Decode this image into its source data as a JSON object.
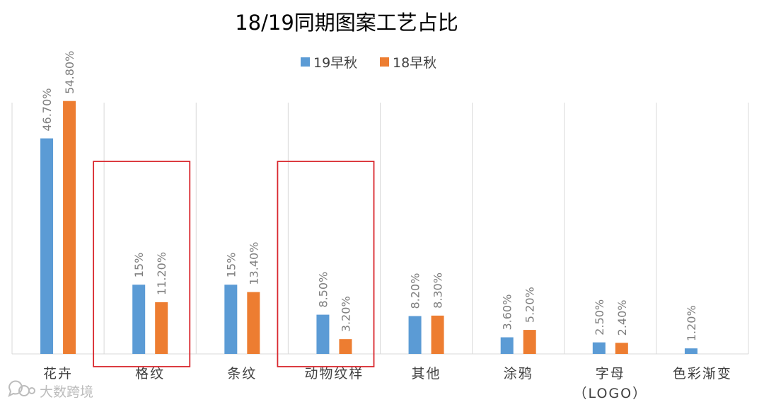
{
  "chart_data": {
    "type": "bar",
    "title": "18/19同期图案工艺占比",
    "categories": [
      "花卉",
      "格纹",
      "条纹",
      "动物纹样",
      "其他",
      "涂鸦",
      "字母",
      "色彩渐变"
    ],
    "category_sublabels": [
      "",
      "",
      "",
      "",
      "",
      "",
      "（LOGO）",
      ""
    ],
    "series": [
      {
        "name": "19早秋",
        "color": "#5b9bd5",
        "values": [
          46.7,
          15,
          15,
          8.5,
          8.2,
          3.6,
          2.5,
          1.2
        ],
        "labels": [
          "46.70%",
          "15%",
          "15%",
          "8.50%",
          "8.20%",
          "3.60%",
          "2.50%",
          "1.20%"
        ]
      },
      {
        "name": "18早秋",
        "color": "#ed7d31",
        "values": [
          54.8,
          11.2,
          13.4,
          3.2,
          8.3,
          5.2,
          2.4,
          null
        ],
        "labels": [
          "54.80%",
          "11.20%",
          "13.40%",
          "3.20%",
          "8.30%",
          "5.20%",
          "2.40%",
          ""
        ]
      }
    ],
    "ylim": [
      0,
      60
    ],
    "grid": "vertical category separators",
    "legend": "top-center",
    "highlighted_categories": [
      "格纹",
      "动物纹样"
    ],
    "highlight_color": "#d9262c"
  },
  "watermark": {
    "text": "大数跨境",
    "icon": "chat-bubble-logo"
  }
}
